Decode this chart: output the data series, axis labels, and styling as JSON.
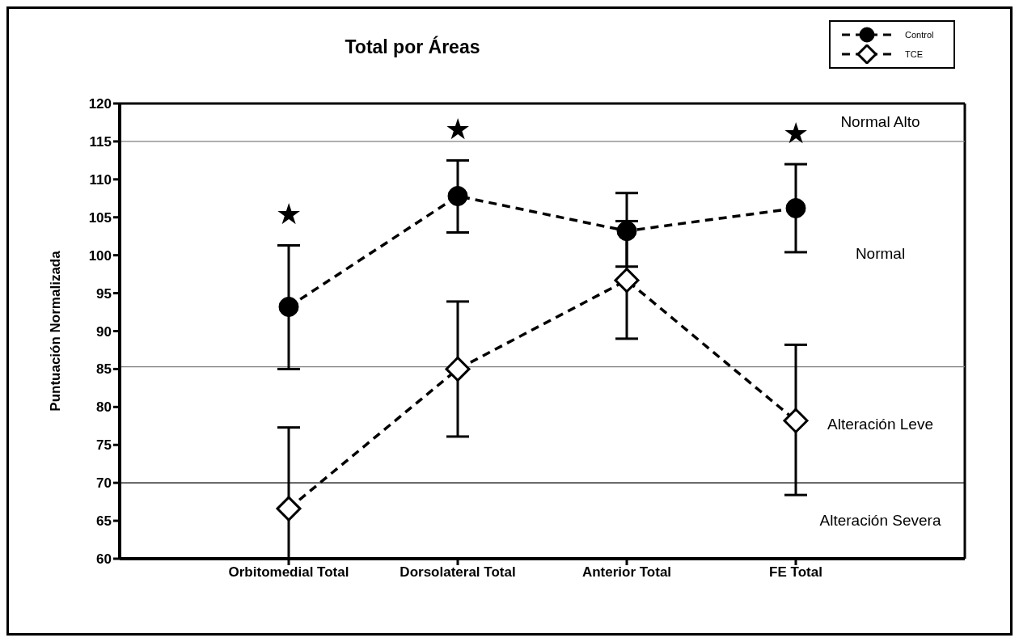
{
  "chart_data": {
    "type": "line",
    "title": "Total por Áreas",
    "ylabel": "Puntuación Normalizada",
    "categories": [
      "Orbitomedial Total",
      "Dorsolateral Total",
      "Anterior Total",
      "FE Total"
    ],
    "series": [
      {
        "name": "Control",
        "color": "#000000",
        "marker": "circle",
        "values": [
          93.2,
          107.8,
          103.2,
          106.2
        ],
        "errors": [
          [
            85,
            101.3
          ],
          [
            103,
            112.5
          ],
          [
            98.5,
            108.2
          ],
          [
            100.4,
            112
          ]
        ]
      },
      {
        "name": "TCE",
        "color": "#000000",
        "marker": "diamond",
        "values": [
          66.6,
          85,
          96.7,
          78.2
        ],
        "errors": [
          [
            60,
            77.3
          ],
          [
            76.1,
            93.9
          ],
          [
            89,
            104.5
          ],
          [
            68.4,
            88.2
          ]
        ]
      }
    ],
    "line_style": "dashed",
    "ylim": [
      60,
      120
    ],
    "yticks": [
      60,
      65,
      70,
      75,
      80,
      85,
      90,
      95,
      100,
      105,
      110,
      115,
      120
    ],
    "ref_lines": [
      {
        "axis": "y",
        "value": 115,
        "color": "#808080"
      },
      {
        "axis": "y",
        "value": 85.3,
        "color": "#808080"
      },
      {
        "axis": "y",
        "value": 70,
        "color": "#000000"
      }
    ],
    "annotations": [
      "Normal Alto",
      "Normal",
      "Alteración Leve",
      "Alteración Severa",
      {
        "text": "★",
        "x": "Orbitomedial Total",
        "y": 101.3
      },
      {
        "text": "★",
        "x": "Dorsolateral Total",
        "y": 112.5
      },
      {
        "text": "★",
        "x": "FE Total",
        "y": 112
      }
    ],
    "grid": false,
    "legend": "top right"
  }
}
